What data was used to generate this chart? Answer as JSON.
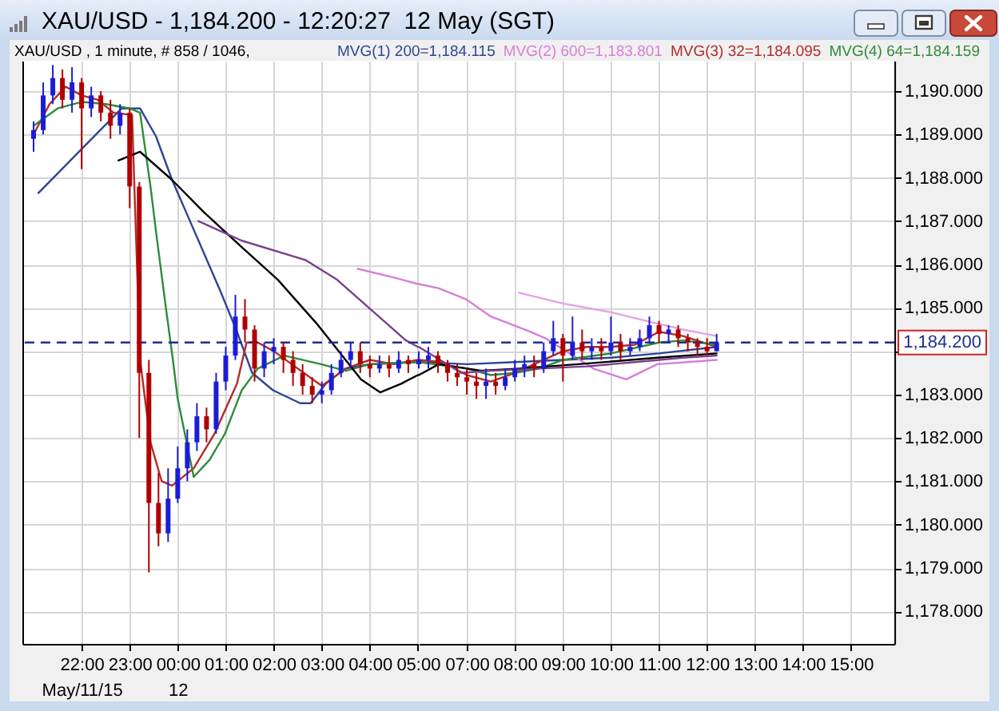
{
  "chart_data": [
    {
      "type": "candlestick",
      "title": "XAU/USD - 1,184.200 - 12:20:27  12 May (SGT)",
      "subtitle": "XAU/USD , 1 minute, # 858 / 1046,",
      "x": [
        "--05-11T21:00",
        "--05-11T21:12",
        "--05-11T21:24",
        "--05-11T21:36",
        "--05-11T21:48",
        "--05-11T22:00",
        "--05-11T22:12",
        "--05-11T22:24",
        "--05-11T22:36",
        "--05-11T22:48",
        "--05-11T23:00",
        "--05-11T23:12",
        "--05-11T23:24",
        "--05-11T23:36",
        "--05-11T23:48",
        "--05-12T00:00",
        "--05-12T00:12",
        "--05-12T00:24",
        "--05-12T00:36",
        "--05-12T00:48",
        "--05-12T01:00",
        "--05-12T01:12",
        "--05-12T01:24",
        "--05-12T01:36",
        "--05-12T01:48",
        "--05-12T02:00",
        "--05-12T02:12",
        "--05-12T02:24",
        "--05-12T02:36",
        "--05-12T02:48",
        "--05-12T03:00",
        "--05-12T03:12",
        "--05-12T03:24",
        "--05-12T03:36",
        "--05-12T03:48",
        "--05-12T04:00",
        "--05-12T04:12",
        "--05-12T04:24",
        "--05-12T04:36",
        "--05-12T04:48"
      ],
      "ohlc": [
        [
          1188.9,
          1189.3,
          1188.6,
          1189.1
        ],
        [
          1189.1,
          1190.2,
          1189.0,
          1189.9
        ],
        [
          1189.9,
          1190.6,
          1189.7,
          1190.3
        ],
        [
          1190.3,
          1190.5,
          1189.6,
          1189.8
        ],
        [
          1189.8,
          1190.55,
          1189.5,
          1190.2
        ],
        [
          1190.2,
          1190.3,
          1188.2,
          1189.6
        ],
        [
          1189.6,
          1190.1,
          1189.4,
          1189.9
        ],
        [
          1189.9,
          1190.0,
          1189.3,
          1189.5
        ],
        [
          1189.5,
          1189.8,
          1188.9,
          1189.2
        ],
        [
          1189.2,
          1189.7,
          1189.0,
          1189.5
        ],
        [
          1189.5,
          1189.6,
          1187.3,
          1187.8
        ],
        [
          1187.8,
          1187.9,
          1182.0,
          1183.5
        ],
        [
          1183.5,
          1183.8,
          1178.9,
          1180.5
        ],
        [
          1180.5,
          1181.2,
          1179.5,
          1179.8
        ],
        [
          1179.8,
          1181.3,
          1179.6,
          1180.6
        ],
        [
          1180.6,
          1181.8,
          1180.5,
          1181.3
        ],
        [
          1181.3,
          1182.2,
          1181.0,
          1181.9
        ],
        [
          1181.9,
          1182.8,
          1181.7,
          1182.5
        ],
        [
          1182.5,
          1182.7,
          1181.9,
          1182.2
        ],
        [
          1182.2,
          1183.5,
          1182.1,
          1183.3
        ],
        [
          1183.3,
          1184.1,
          1183.1,
          1183.9
        ],
        [
          1183.9,
          1185.3,
          1183.8,
          1184.8
        ],
        [
          1184.8,
          1185.2,
          1184.2,
          1184.5
        ],
        [
          1184.5,
          1184.6,
          1183.3,
          1183.6
        ],
        [
          1183.6,
          1184.2,
          1183.4,
          1184.0
        ],
        [
          1184.0,
          1184.3,
          1183.7,
          1184.1
        ],
        [
          1184.1,
          1184.2,
          1183.5,
          1183.8
        ],
        [
          1183.8,
          1184.0,
          1183.2,
          1183.5
        ],
        [
          1183.5,
          1183.7,
          1183.0,
          1183.2
        ],
        [
          1183.2,
          1183.4,
          1182.8,
          1183.0
        ],
        [
          1183.0,
          1183.3,
          1182.8,
          1183.1
        ],
        [
          1183.1,
          1183.7,
          1183.0,
          1183.5
        ],
        [
          1183.5,
          1184.0,
          1183.4,
          1183.8
        ],
        [
          1183.8,
          1184.2,
          1183.6,
          1184.0
        ],
        [
          1184.0,
          1184.2,
          1183.5,
          1183.7
        ],
        [
          1183.7,
          1183.9,
          1183.4,
          1183.6
        ],
        [
          1183.6,
          1183.9,
          1183.5,
          1183.7
        ],
        [
          1183.7,
          1183.9,
          1183.4,
          1183.6
        ],
        [
          1183.6,
          1184.0,
          1183.5,
          1183.8
        ],
        [
          1183.8,
          1183.9,
          1183.5,
          1183.7
        ]
      ],
      "colors": [
        "#1c1cd6",
        "#1c1cd6",
        "#1c1cd6",
        "#b00000",
        "#1c1cd6",
        "#b00000",
        "#1c1cd6",
        "#b00000",
        "#b00000",
        "#1c1cd6",
        "#b00000",
        "#b00000",
        "#b00000",
        "#b00000",
        "#1c1cd6",
        "#1c1cd6",
        "#1c1cd6",
        "#1c1cd6",
        "#b00000",
        "#1c1cd6",
        "#1c1cd6",
        "#1c1cd6",
        "#b00000",
        "#b00000",
        "#1c1cd6",
        "#1c1cd6",
        "#b00000",
        "#b00000",
        "#b00000",
        "#b00000",
        "#1c1cd6",
        "#1c1cd6",
        "#1c1cd6",
        "#1c1cd6",
        "#b00000",
        "#b00000",
        "#1c1cd6",
        "#b00000",
        "#1c1cd6",
        "#b00000"
      ],
      "series": [
        {
          "color": "#2e4596",
          "type": "line",
          "x": [
            "--05-11T21:06",
            "--05-11T22:50",
            "--05-11T23:13",
            "--05-11T23:33",
            "--05-11T23:53",
            "--05-12T00:13",
            "--05-12T00:33",
            "--05-12T00:53",
            "--05-12T01:13",
            "--05-12T01:33",
            "--05-12T01:59",
            "--05-12T02:33",
            "--05-12T02:46",
            "--05-12T03:05",
            "--05-12T03:29",
            "--05-12T04:00",
            "--05-12T05:00"
          ],
          "values": [
            1187.65,
            1189.6,
            1189.6,
            1188.95,
            1187.95,
            1187.1,
            1186.25,
            1185.4,
            1184.5,
            1183.5,
            1183.1,
            1182.8,
            1182.8,
            1183.25,
            1183.6,
            1183.7,
            1183.75
          ]
        },
        {
          "color": "#d77fd7",
          "type": "line",
          "x": [
            "--05-12T03:45",
            "--05-12T04:30",
            "--05-12T05:00"
          ],
          "values": [
            1185.9,
            1185.7,
            1185.55
          ]
        },
        {
          "color": "#b22a2a",
          "type": "line",
          "x": [
            "--05-11T21:00",
            "--05-11T21:20",
            "--05-11T21:40",
            "--05-11T22:00",
            "--05-11T22:20",
            "--05-11T22:40",
            "--05-11T23:03",
            "--05-11T23:08",
            "--05-11T23:13",
            "--05-11T23:26",
            "--05-11T23:40",
            "--05-11T23:53",
            "--05-12T00:20",
            "--05-12T00:46",
            "--05-12T01:14",
            "--05-12T01:26",
            "--05-12T01:40",
            "--05-12T02:00",
            "--05-12T02:30",
            "--05-12T03:00",
            "--05-12T03:30",
            "--05-12T04:00",
            "--05-12T04:30",
            "--05-12T05:00"
          ],
          "values": [
            1189.0,
            1189.7,
            1190.1,
            1189.9,
            1189.8,
            1189.5,
            1189.45,
            1186.6,
            1183.8,
            1181.9,
            1181.0,
            1180.9,
            1181.3,
            1182.1,
            1183.25,
            1184.2,
            1184.2,
            1184.0,
            1183.6,
            1183.2,
            1183.6,
            1183.8,
            1183.7,
            1183.8
          ]
        },
        {
          "color": "#2e8b3a",
          "type": "line",
          "x": [
            "--05-11T21:00",
            "--05-11T21:30",
            "--05-11T22:00",
            "--05-11T22:30",
            "--05-11T23:00",
            "--05-11T23:13",
            "--05-11T23:26",
            "--05-11T23:34",
            "--05-11T23:46",
            "--05-11T23:54",
            "--05-12T00:00",
            "--05-12T00:20",
            "--05-12T00:40",
            "--05-12T00:59",
            "--05-12T01:20",
            "--05-12T01:40",
            "--05-12T02:13",
            "--05-12T02:59",
            "--05-12T03:30",
            "--05-12T04:00",
            "--05-12T05:00"
          ],
          "values": [
            1189.2,
            1189.6,
            1189.75,
            1189.7,
            1189.6,
            1189.5,
            1187.8,
            1186.6,
            1184.9,
            1183.8,
            1182.9,
            1181.1,
            1181.5,
            1182.1,
            1183.1,
            1183.6,
            1183.9,
            1183.7,
            1183.55,
            1183.7,
            1183.75
          ]
        },
        {
          "color": "#000000",
          "type": "line",
          "x": [
            "--05-11T22:46",
            "--05-11T23:13",
            "--05-11T23:53",
            "--05-12T00:33",
            "--05-12T01:20",
            "--05-12T02:05",
            "--05-12T02:53",
            "--05-12T03:19",
            "--05-12T03:49",
            "--05-12T04:13",
            "--05-12T04:39",
            "--05-12T05:00"
          ],
          "values": [
            1188.4,
            1188.6,
            1187.95,
            1187.2,
            1186.4,
            1185.65,
            1184.65,
            1184.05,
            1183.35,
            1183.05,
            1183.25,
            1183.45
          ]
        },
        {
          "color": "#7b3f8c",
          "type": "line",
          "x": [
            "--05-12T00:26",
            "--05-12T01:20",
            "--05-12T02:40",
            "--05-12T03:19",
            "--05-12T04:45",
            "--05-12T05:00"
          ],
          "values": [
            1187.0,
            1186.55,
            1186.1,
            1185.65,
            1184.25,
            1184.1
          ]
        }
      ],
      "xlim": [
        "--05-11T20:46",
        "--05-12T05:00"
      ],
      "xticks": [
        {
          "value": "--05-11T22:00",
          "label": "22:00\nMay/11/15"
        },
        {
          "value": "--05-11T23:00",
          "label": "23:00"
        },
        {
          "value": "--05-12T00:00",
          "label": "00:00\n12"
        },
        {
          "value": "--05-12T01:00",
          "label": "01:00"
        },
        {
          "value": "--05-12T02:00",
          "label": "02:00"
        },
        {
          "value": "--05-12T03:00",
          "label": "03:00"
        },
        {
          "value": "--05-12T04:00",
          "label": "04:00"
        },
        {
          "value": "--05-12T05:00",
          "label": "05:00"
        }
      ],
      "ylim": [
        1177.25,
        1190.7
      ],
      "yticks": [
        1178,
        1179,
        1180,
        1181,
        1182,
        1183,
        1184,
        1185,
        1186,
        1187,
        1188,
        1189,
        1190
      ],
      "tick_labels": "x",
      "ref_lines": [
        {
          "axis": "y",
          "value": 1184.2,
          "color": "#1f2f8f",
          "line_style": "dashed"
        }
      ],
      "grid": true
    },
    {
      "type": "candlestick",
      "x": [
        "--05-12T06:00",
        "--05-12T06:12",
        "--05-12T06:24",
        "--05-12T06:36",
        "--05-12T06:48",
        "--05-12T07:00",
        "--05-12T07:12",
        "--05-12T07:24",
        "--05-12T07:36",
        "--05-12T07:48",
        "--05-12T08:00",
        "--05-12T08:12",
        "--05-12T08:24",
        "--05-12T08:36",
        "--05-12T08:48",
        "--05-12T09:00",
        "--05-12T09:12",
        "--05-12T09:24",
        "--05-12T09:36",
        "--05-12T09:48",
        "--05-12T10:00",
        "--05-12T10:12",
        "--05-12T10:24",
        "--05-12T10:36",
        "--05-12T10:48",
        "--05-12T11:00",
        "--05-12T11:12",
        "--05-12T11:24",
        "--05-12T11:36",
        "--05-12T11:48",
        "--05-12T12:00",
        "--05-12T12:12"
      ],
      "ohlc": [
        [
          1183.7,
          1184.0,
          1183.6,
          1183.8
        ],
        [
          1183.8,
          1184.1,
          1183.6,
          1183.9
        ],
        [
          1183.9,
          1184.0,
          1183.5,
          1183.7
        ],
        [
          1183.7,
          1183.8,
          1183.3,
          1183.5
        ],
        [
          1183.5,
          1183.7,
          1183.2,
          1183.4
        ],
        [
          1183.4,
          1183.6,
          1183.0,
          1183.3
        ],
        [
          1183.3,
          1183.5,
          1182.9,
          1183.2
        ],
        [
          1183.2,
          1183.6,
          1182.9,
          1183.3
        ],
        [
          1183.3,
          1183.5,
          1183.0,
          1183.2
        ],
        [
          1183.2,
          1183.6,
          1183.1,
          1183.4
        ],
        [
          1183.4,
          1183.8,
          1183.3,
          1183.6
        ],
        [
          1183.6,
          1183.9,
          1183.4,
          1183.7
        ],
        [
          1183.7,
          1183.9,
          1183.4,
          1183.6
        ],
        [
          1183.6,
          1184.2,
          1183.5,
          1184.0
        ],
        [
          1184.0,
          1184.7,
          1183.9,
          1184.3
        ],
        [
          1184.3,
          1184.4,
          1183.3,
          1183.9
        ],
        [
          1183.9,
          1184.8,
          1183.8,
          1184.2
        ],
        [
          1184.2,
          1184.5,
          1183.8,
          1184.0
        ],
        [
          1184.0,
          1184.3,
          1183.8,
          1184.1
        ],
        [
          1184.1,
          1184.3,
          1183.8,
          1184.0
        ],
        [
          1184.0,
          1184.8,
          1183.9,
          1184.2
        ],
        [
          1184.2,
          1184.4,
          1183.8,
          1184.0
        ],
        [
          1184.0,
          1184.3,
          1183.9,
          1184.1
        ],
        [
          1184.1,
          1184.5,
          1184.0,
          1184.3
        ],
        [
          1184.3,
          1184.8,
          1184.2,
          1184.6
        ],
        [
          1184.6,
          1184.7,
          1184.2,
          1184.4
        ],
        [
          1184.4,
          1184.6,
          1184.2,
          1184.5
        ],
        [
          1184.5,
          1184.6,
          1184.1,
          1184.3
        ],
        [
          1184.3,
          1184.4,
          1184.0,
          1184.2
        ],
        [
          1184.2,
          1184.3,
          1183.9,
          1184.1
        ],
        [
          1184.1,
          1184.3,
          1183.9,
          1184.0
        ],
        [
          1184.0,
          1184.4,
          1184.0,
          1184.2
        ]
      ],
      "colors": [
        "#1c1cd6",
        "#1c1cd6",
        "#b00000",
        "#b00000",
        "#b00000",
        "#b00000",
        "#b00000",
        "#1c1cd6",
        "#b00000",
        "#1c1cd6",
        "#1c1cd6",
        "#1c1cd6",
        "#b00000",
        "#1c1cd6",
        "#1c1cd6",
        "#b00000",
        "#1c1cd6",
        "#b00000",
        "#1c1cd6",
        "#b00000",
        "#1c1cd6",
        "#b00000",
        "#1c1cd6",
        "#1c1cd6",
        "#1c1cd6",
        "#b00000",
        "#1c1cd6",
        "#b00000",
        "#b00000",
        "#b00000",
        "#b00000",
        "#1c1cd6"
      ],
      "series": [
        {
          "name": "MVG(1) 200=1,184.115",
          "color": "#2e4596",
          "type": "line",
          "x": [
            "--05-12T06:00",
            "--05-12T07:00",
            "--05-12T08:00",
            "--05-12T09:00",
            "--05-12T10:00",
            "--05-12T11:00",
            "--05-12T12:12"
          ],
          "values": [
            1183.75,
            1183.7,
            1183.75,
            1183.8,
            1183.85,
            1183.95,
            1184.1
          ]
        },
        {
          "name": "MVG(2) 600=1,183.801",
          "color": "#d77fd7",
          "type": "line",
          "x": [
            "--05-12T06:00",
            "--05-12T06:25",
            "--05-12T06:59",
            "--05-12T07:30",
            "--05-12T08:19",
            "--05-12T08:38",
            "--05-12T09:38",
            "--05-12T10:19",
            "--05-12T10:58",
            "--05-12T11:36",
            "--05-12T12:12"
          ],
          "values": [
            1185.55,
            1185.45,
            1185.2,
            1184.8,
            1184.45,
            1184.3,
            1183.6,
            1183.35,
            1183.7,
            1183.75,
            1183.8
          ]
        },
        {
          "name": "MVG(3) 32=1,184.095",
          "color": "#b22a2a",
          "type": "line",
          "x": [
            "--05-12T06:00",
            "--05-12T06:30",
            "--05-12T07:00",
            "--05-12T07:30",
            "--05-12T08:00",
            "--05-12T08:30",
            "--05-12T09:00",
            "--05-12T09:30",
            "--05-12T10:00",
            "--05-12T10:30",
            "--05-12T11:00",
            "--05-12T11:30",
            "--05-12T12:12"
          ],
          "values": [
            1183.8,
            1183.75,
            1183.45,
            1183.3,
            1183.5,
            1183.75,
            1184.0,
            1184.1,
            1184.1,
            1184.15,
            1184.45,
            1184.35,
            1184.1
          ]
        },
        {
          "name": "MVG(4) 64=1,184.159",
          "color": "#2e8b3a",
          "type": "line",
          "x": [
            "--05-12T06:00",
            "--05-12T07:00",
            "--05-12T07:30",
            "--05-12T08:00",
            "--05-12T08:30",
            "--05-12T09:00",
            "--05-12T10:00",
            "--05-12T11:00",
            "--05-12T11:30",
            "--05-12T12:12"
          ],
          "values": [
            1183.75,
            1183.6,
            1183.45,
            1183.5,
            1183.6,
            1183.8,
            1183.95,
            1184.2,
            1184.25,
            1184.15
          ]
        },
        {
          "color": "#000000",
          "type": "line",
          "x": [
            "--05-12T06:00",
            "--05-12T06:25",
            "--05-12T07:19",
            "--05-12T08:05",
            "--05-12T09:19",
            "--05-12T10:58",
            "--05-12T12:12"
          ],
          "values": [
            1183.45,
            1183.7,
            1183.55,
            1183.6,
            1183.7,
            1183.85,
            1183.95
          ]
        },
        {
          "color": "#7b3f8c",
          "type": "line",
          "x": [
            "--05-12T06:00",
            "--05-12T06:53",
            "--05-12T07:30",
            "--05-12T08:30",
            "--05-12T09:30",
            "--05-12T10:30",
            "--05-12T11:30",
            "--05-12T12:12"
          ],
          "values": [
            1184.1,
            1183.5,
            1183.55,
            1183.6,
            1183.65,
            1183.75,
            1183.85,
            1183.9
          ]
        },
        {
          "color": "#e3a3e3",
          "type": "line",
          "x": [
            "--05-12T08:05",
            "--05-12T09:00",
            "--05-12T10:00",
            "--05-12T10:44",
            "--05-12T11:30",
            "--05-12T12:12"
          ],
          "values": [
            1185.35,
            1185.1,
            1184.9,
            1184.7,
            1184.5,
            1184.35
          ]
        }
      ],
      "xlim": [
        "--05-12T06:00",
        "--05-12T15:54"
      ],
      "xticks": [
        {
          "value": "--05-12T07:00",
          "label": "07:00"
        },
        {
          "value": "--05-12T08:00",
          "label": "08:00"
        },
        {
          "value": "--05-12T09:00",
          "label": "09:00"
        },
        {
          "value": "--05-12T10:00",
          "label": "10:00"
        },
        {
          "value": "--05-12T11:00",
          "label": "11:00"
        },
        {
          "value": "--05-12T12:00",
          "label": "12:00"
        },
        {
          "value": "--05-12T13:00",
          "label": "13:00"
        },
        {
          "value": "--05-12T14:00",
          "label": "14:00"
        },
        {
          "value": "--05-12T15:00",
          "label": "15:00"
        }
      ],
      "ylim": [
        1177.25,
        1190.7
      ],
      "yticks": [
        {
          "value": 1178,
          "label": "1,178.000"
        },
        {
          "value": 1179,
          "label": "1,179.000"
        },
        {
          "value": 1180,
          "label": "1,180.000"
        },
        {
          "value": 1181,
          "label": "1,181.000"
        },
        {
          "value": 1182,
          "label": "1,182.000"
        },
        {
          "value": 1183,
          "label": "1,183.000"
        },
        {
          "value": 1184,
          "label": null
        },
        {
          "value": 1185,
          "label": "1,185.000"
        },
        {
          "value": 1186,
          "label": "1,186.000"
        },
        {
          "value": 1187,
          "label": "1,187.000"
        },
        {
          "value": 1188,
          "label": "1,188.000"
        },
        {
          "value": 1189,
          "label": "1,189.000"
        },
        {
          "value": 1190,
          "label": "1,190.000"
        }
      ],
      "ref_lines": [
        {
          "axis": "y",
          "value": 1184.2,
          "label": "1,184.200",
          "color": "#1f2f8f",
          "line_style": "dashed"
        }
      ],
      "grid": true,
      "legend": "top right"
    }
  ]
}
